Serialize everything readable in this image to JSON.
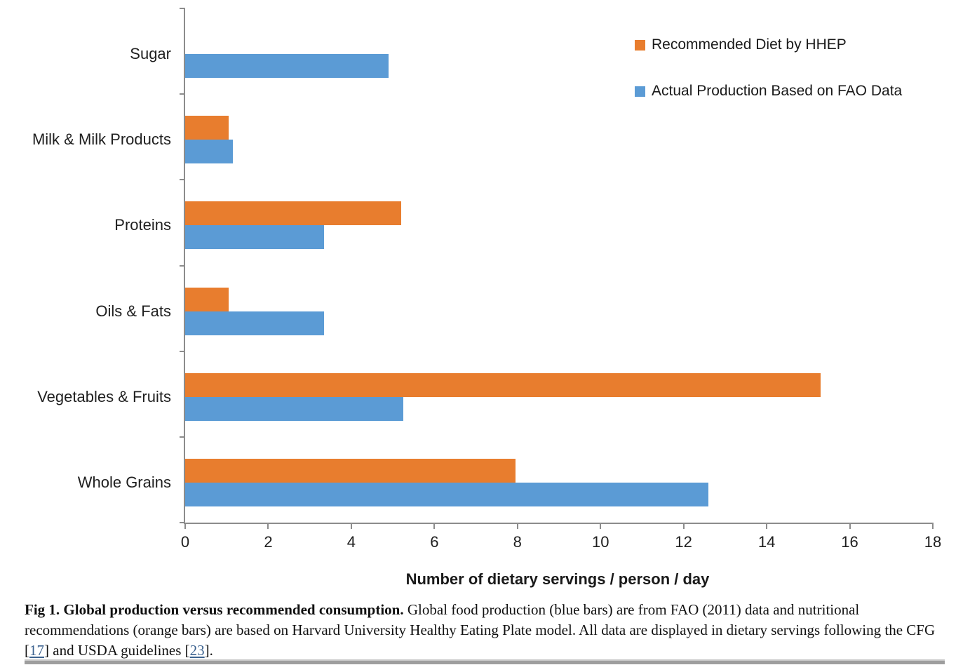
{
  "chart_data": {
    "type": "bar",
    "orientation": "horizontal",
    "categories": [
      "Sugar",
      "Milk & Milk Products",
      "Proteins",
      "Oils & Fats",
      "Vegetables & Fruits",
      "Whole Grains"
    ],
    "series": [
      {
        "name": "Recommended Diet by HHEP",
        "color": "#E87D2E",
        "values": [
          0,
          1.05,
          5.2,
          1.05,
          15.3,
          7.95
        ]
      },
      {
        "name": "Actual Production Based on FAO Data",
        "color": "#5B9BD5",
        "values": [
          4.9,
          1.15,
          3.35,
          3.35,
          5.25,
          12.6
        ]
      }
    ],
    "xlabel": "Number of dietary servings / person / day",
    "ylabel": "",
    "xlim": [
      0,
      18
    ],
    "xticks": [
      0,
      2,
      4,
      6,
      8,
      10,
      12,
      14,
      16,
      18
    ],
    "grid": false,
    "legend_position": "top-right",
    "axis_color": "#8c8c8c"
  },
  "figure": {
    "caption": {
      "bold": "Fig 1. Global production versus recommended consumption.",
      "text1": " Global food production (blue bars) are from FAO (2011) data and nutritional recommendations (orange bars) are based on Harvard University Healthy Eating Plate model. All data are displayed in dietary servings following the CFG [",
      "ref1": "17",
      "text2": "] and USDA guidelines [",
      "ref2": "23",
      "text3": "]."
    }
  }
}
